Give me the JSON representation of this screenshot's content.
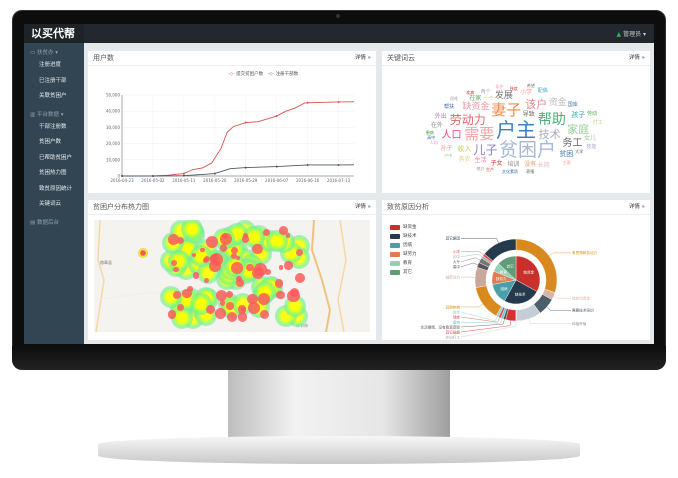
{
  "app": {
    "title": "以买代帮",
    "user": "管理员"
  },
  "sidebar": {
    "groups": [
      {
        "label": "扶贫办",
        "icon": "monitor-icon",
        "items": [
          "注册进度",
          "已注册干部",
          "关联贫困户"
        ]
      },
      {
        "label": "平台数据",
        "icon": "bar-chart-icon",
        "items": [
          "干部注册数",
          "贫困户数",
          "已帮助贫困户",
          "贫困热力图",
          "致贫原因统计",
          "关键词云"
        ]
      },
      {
        "label": "数据后台",
        "icon": "database-icon",
        "items": []
      }
    ]
  },
  "panels": {
    "users": {
      "title": "用户数",
      "more": "详情 »"
    },
    "cloud": {
      "title": "关键词云",
      "more": "详情 »"
    },
    "heatmap": {
      "title": "贫困户分布热力图",
      "more": "详情 »",
      "map_labels": [
        "赫章县",
        "毕节市"
      ]
    },
    "reasons": {
      "title": "致贫原因分析",
      "more": "详情 »"
    }
  },
  "chart_data": [
    {
      "type": "line",
      "title": "",
      "xlabel": "",
      "ylabel": "",
      "ylim": [
        0,
        50000
      ],
      "grid": true,
      "legend": "top",
      "x_ticks": [
        "2016-04-23",
        "2016-05-02",
        "2016-05-11",
        "2016-05-20",
        "2016-05-29",
        "2016-06-07",
        "2016-06-16",
        "2016-07-13"
      ],
      "y_ticks": [
        "0",
        "10,000",
        "20,000",
        "30,000",
        "40,000",
        "50,000"
      ],
      "series": [
        {
          "name": "提交贫困户数",
          "color": "#d9534f",
          "points": [
            [
              0,
              0
            ],
            [
              1,
              0
            ],
            [
              1.5,
              500
            ],
            [
              2,
              1500
            ],
            [
              2.3,
              4000
            ],
            [
              2.6,
              5000
            ],
            [
              2.9,
              8000
            ],
            [
              3.2,
              17000
            ],
            [
              3.4,
              27000
            ],
            [
              3.6,
              30500
            ],
            [
              4,
              33000
            ],
            [
              4.4,
              33500
            ],
            [
              5,
              37000
            ],
            [
              5.3,
              40000
            ],
            [
              5.6,
              42000
            ],
            [
              5.9,
              45000
            ],
            [
              6,
              45200
            ],
            [
              7,
              45700
            ],
            [
              7.5,
              45800
            ]
          ]
        },
        {
          "name": "注册干部数",
          "color": "#4b5a66",
          "points": [
            [
              0,
              0
            ],
            [
              1,
              0
            ],
            [
              2,
              200
            ],
            [
              3,
              1500
            ],
            [
              3.5,
              4500
            ],
            [
              4,
              5200
            ],
            [
              5,
              5800
            ],
            [
              6,
              6800
            ],
            [
              7,
              6800
            ],
            [
              7.5,
              6900
            ]
          ]
        }
      ]
    },
    {
      "type": "pie",
      "title": "",
      "inner": [
        {
          "name": "缺资金",
          "value": 33,
          "color": "#c9302c"
        },
        {
          "name": "缺技术",
          "value": 25,
          "color": "#263a4d"
        },
        {
          "name": "因病",
          "value": 14,
          "color": "#4a9ea8"
        },
        {
          "name": "缺劳力",
          "value": 9,
          "color": "#e07b54"
        },
        {
          "name": "教育",
          "value": 6,
          "color": "#8fd1b4"
        },
        {
          "name": "其它",
          "value": 13,
          "color": "#5f9c78"
        }
      ],
      "outer": [
        {
          "name": "有思想和劳动力",
          "value": 30,
          "color": "#d98a1e"
        },
        {
          "name": "缺启动资金",
          "value": 3,
          "color": "#d8b5a5"
        },
        {
          "name": "需要技术培训",
          "value": 7,
          "color": "#4c5e69"
        },
        {
          "name": "种植养殖",
          "value": 10,
          "color": "#c5ced4"
        },
        {
          "name": "外出打工",
          "value": 0.1,
          "color": "#ccc"
        },
        {
          "name": "其它技能",
          "value": 4,
          "color": "#d62f2f"
        },
        {
          "name": "生活懒惰、没有致富意愿",
          "value": 1,
          "color": "#555"
        },
        {
          "name": "重病",
          "value": 1,
          "color": "#6ec4d4"
        },
        {
          "name": "残疾",
          "value": 1,
          "color": "#d94f4f"
        },
        {
          "name": "慢性",
          "value": 1,
          "color": "#8ed6c6"
        },
        {
          "name": "其他疾病",
          "value": 14,
          "color": "#d98a1e"
        },
        {
          "name": "缺劳动力",
          "value": 8,
          "color": "#c8a89a"
        },
        {
          "name": "高中",
          "value": 2,
          "color": "#555"
        },
        {
          "name": "大专",
          "value": 2,
          "color": "#777"
        },
        {
          "name": "初中",
          "value": 1,
          "color": "#aaa"
        },
        {
          "name": "小学",
          "value": 1,
          "color": "#d9534f"
        },
        {
          "name": "其它原因",
          "value": 14,
          "color": "#263a4d"
        }
      ]
    }
  ],
  "word_cloud": [
    {
      "t": "户主",
      "c": "#3b7fc4",
      "s": 20
    },
    {
      "t": "贫困户",
      "c": "#a8b8d8",
      "s": 19
    },
    {
      "t": "需要",
      "c": "#f4a6a6",
      "s": 15
    },
    {
      "t": "妻子",
      "c": "#f08a4b",
      "s": 15
    },
    {
      "t": "帮助",
      "c": "#4caf7a",
      "s": 14
    },
    {
      "t": "劳动力",
      "c": "#e06666",
      "s": 12
    },
    {
      "t": "儿子",
      "c": "#8e7cc3",
      "s": 12
    },
    {
      "t": "技术",
      "c": "#aab",
      "s": 11
    },
    {
      "t": "该户",
      "c": "#e88",
      "s": 11
    },
    {
      "t": "家庭",
      "c": "#9c9",
      "s": 11
    },
    {
      "t": "务工",
      "c": "#666",
      "s": 10
    },
    {
      "t": "人口",
      "c": "#e47",
      "s": 10
    },
    {
      "t": "缺资金",
      "c": "#e9a",
      "s": 9
    },
    {
      "t": "发展",
      "c": "#777",
      "s": 9
    },
    {
      "t": "资金",
      "c": "#bbb",
      "s": 9
    },
    {
      "t": "收入",
      "c": "#cc6",
      "s": 7
    },
    {
      "t": "孩子",
      "c": "#3aa",
      "s": 7
    },
    {
      "t": "贫困",
      "c": "#47a",
      "s": 7
    },
    {
      "t": "导致",
      "c": "#666",
      "s": 6
    },
    {
      "t": "没有",
      "c": "#e96",
      "s": 6
    },
    {
      "t": "培训",
      "c": "#888",
      "s": 6
    },
    {
      "t": "子女",
      "c": "#d33",
      "s": 6
    },
    {
      "t": "生活",
      "c": "#e8a",
      "s": 6
    },
    {
      "t": "在家",
      "c": "#5a5",
      "s": 6
    },
    {
      "t": "小学",
      "c": "#f99",
      "s": 6
    },
    {
      "t": "女儿",
      "c": "#9c9",
      "s": 6
    },
    {
      "t": "长期",
      "c": "#ebb",
      "s": 6
    },
    {
      "t": "务农",
      "c": "#dc8",
      "s": 6
    },
    {
      "t": "孙子",
      "c": "#f9a",
      "s": 6
    },
    {
      "t": "在外",
      "c": "#888",
      "s": 6
    },
    {
      "t": "外出",
      "c": "#a7c",
      "s": 6
    },
    {
      "t": "一个",
      "c": "#cc6",
      "s": 5
    },
    {
      "t": "国库",
      "c": "#47a",
      "s": 5
    },
    {
      "t": "帮扶",
      "c": "#36a",
      "s": 5
    },
    {
      "t": "两个",
      "c": "#aac",
      "s": 5
    },
    {
      "t": "配偶",
      "c": "#4ac",
      "s": 5
    },
    {
      "t": "劳动",
      "c": "#5a5",
      "s": 5
    },
    {
      "t": "打工",
      "c": "#cc8",
      "s": 5
    },
    {
      "t": "大学",
      "c": "#555",
      "s": 4
    },
    {
      "t": "残疾",
      "c": "#c33",
      "s": 4
    },
    {
      "t": "技能",
      "c": "#aac",
      "s": 5
    },
    {
      "t": "主要",
      "c": "#f99",
      "s": 4
    },
    {
      "t": "养殖",
      "c": "#555",
      "s": 4
    },
    {
      "t": "文化素质",
      "c": "#36a",
      "s": 4
    },
    {
      "t": "生产",
      "c": "#e33",
      "s": 4
    },
    {
      "t": "地方",
      "c": "#999",
      "s": 4
    },
    {
      "t": "户中",
      "c": "#8c8",
      "s": 4
    },
    {
      "t": "人均",
      "c": "#e8a",
      "s": 4
    },
    {
      "t": "高中",
      "c": "#36a",
      "s": 4
    },
    {
      "t": "患病",
      "c": "#393",
      "s": 4
    },
    {
      "t": "困难",
      "c": "#aaa",
      "s": 4
    },
    {
      "t": "疾病",
      "c": "#c33",
      "s": 4
    },
    {
      "t": "条件",
      "c": "#f9a",
      "s": 4
    },
    {
      "t": "希望",
      "c": "#777",
      "s": 4
    }
  ]
}
